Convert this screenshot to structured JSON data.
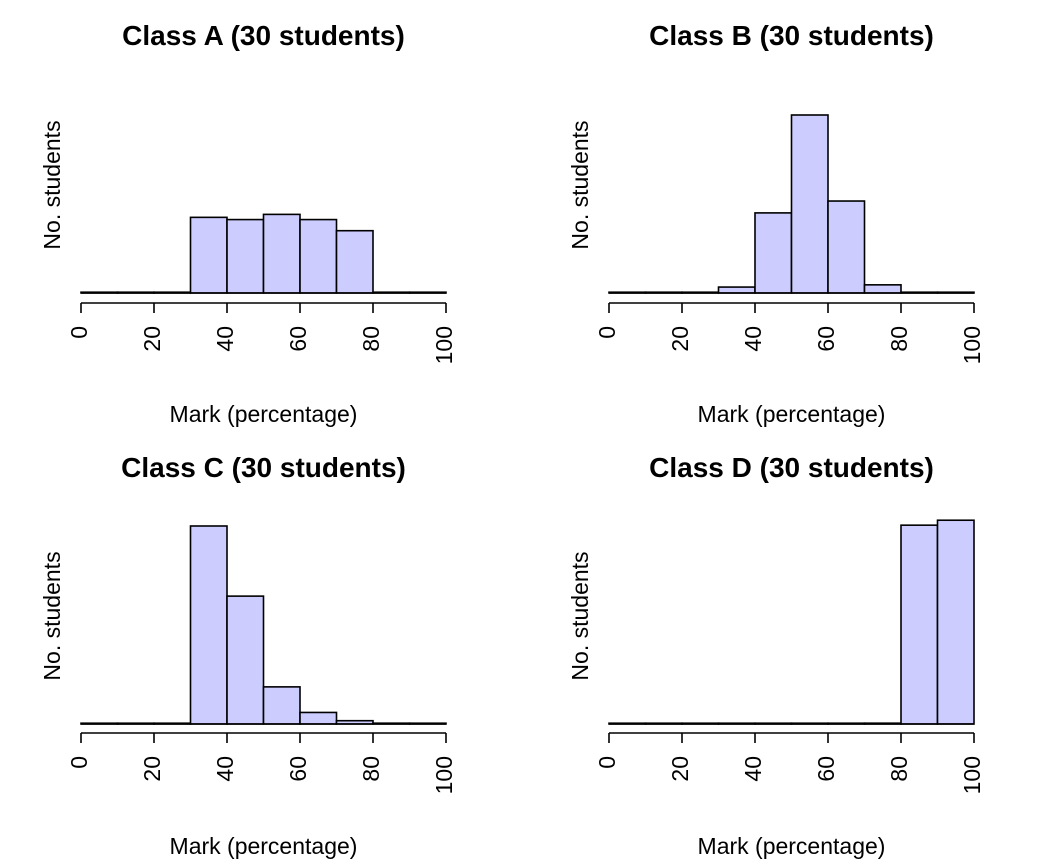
{
  "chart_data": [
    {
      "type": "bar",
      "title": "Class A (30 students)",
      "xlabel": "Mark (percentage)",
      "ylabel": "No. students",
      "xlim": [
        0,
        100
      ],
      "ylim": [
        0,
        2.4
      ],
      "xticks": [
        "0",
        "20",
        "40",
        "60",
        "80",
        "100"
      ],
      "bins": [
        [
          0,
          10
        ],
        [
          10,
          20
        ],
        [
          20,
          30
        ],
        [
          30,
          40
        ],
        [
          40,
          50
        ],
        [
          50,
          60
        ],
        [
          60,
          70
        ],
        [
          70,
          80
        ],
        [
          80,
          90
        ],
        [
          90,
          100
        ]
      ],
      "values": [
        0.0,
        0.0,
        0.01,
        1.02,
        0.99,
        1.06,
        0.99,
        0.84,
        0.0,
        0.0
      ]
    },
    {
      "type": "bar",
      "title": "Class B (30 students)",
      "xlabel": "Mark (percentage)",
      "ylabel": "No. students",
      "xlim": [
        0,
        100
      ],
      "ylim": [
        0,
        2.4
      ],
      "xticks": [
        "0",
        "20",
        "40",
        "60",
        "80",
        "100"
      ],
      "bins": [
        [
          0,
          10
        ],
        [
          10,
          20
        ],
        [
          20,
          30
        ],
        [
          30,
          40
        ],
        [
          40,
          50
        ],
        [
          50,
          60
        ],
        [
          60,
          70
        ],
        [
          70,
          80
        ],
        [
          80,
          90
        ],
        [
          90,
          100
        ]
      ],
      "values": [
        0.0,
        0.0,
        0.01,
        0.08,
        1.08,
        2.4,
        1.24,
        0.11,
        0.0,
        0.0
      ]
    },
    {
      "type": "bar",
      "title": "Class C (30 students)",
      "xlabel": "Mark (percentage)",
      "ylabel": "No. students",
      "xlim": [
        0,
        100
      ],
      "ylim": [
        0,
        2.4
      ],
      "xticks": [
        "0",
        "20",
        "40",
        "60",
        "80",
        "100"
      ],
      "bins": [
        [
          0,
          10
        ],
        [
          10,
          20
        ],
        [
          20,
          30
        ],
        [
          30,
          40
        ],
        [
          40,
          50
        ],
        [
          50,
          60
        ],
        [
          60,
          70
        ],
        [
          70,
          80
        ],
        [
          80,
          90
        ],
        [
          90,
          100
        ]
      ],
      "values": [
        0.0,
        0.0,
        0.0,
        2.4,
        1.55,
        0.45,
        0.14,
        0.04,
        0.01,
        0.0
      ]
    },
    {
      "type": "bar",
      "title": "Class D (30 students)",
      "xlabel": "Mark (percentage)",
      "ylabel": "No. students",
      "xlim": [
        0,
        100
      ],
      "ylim": [
        0,
        2.4
      ],
      "xticks": [
        "0",
        "20",
        "40",
        "60",
        "80",
        "100"
      ],
      "bins": [
        [
          0,
          10
        ],
        [
          10,
          20
        ],
        [
          20,
          30
        ],
        [
          30,
          40
        ],
        [
          40,
          50
        ],
        [
          50,
          60
        ],
        [
          60,
          70
        ],
        [
          70,
          80
        ],
        [
          80,
          90
        ],
        [
          90,
          100
        ]
      ],
      "values": [
        0.0,
        0.0,
        0.0,
        0.0,
        0.0,
        0.0,
        0.0,
        0.01,
        2.41,
        2.47
      ]
    }
  ],
  "colors": {
    "bar_fill": "#ccccff",
    "bar_stroke": "#000000"
  }
}
